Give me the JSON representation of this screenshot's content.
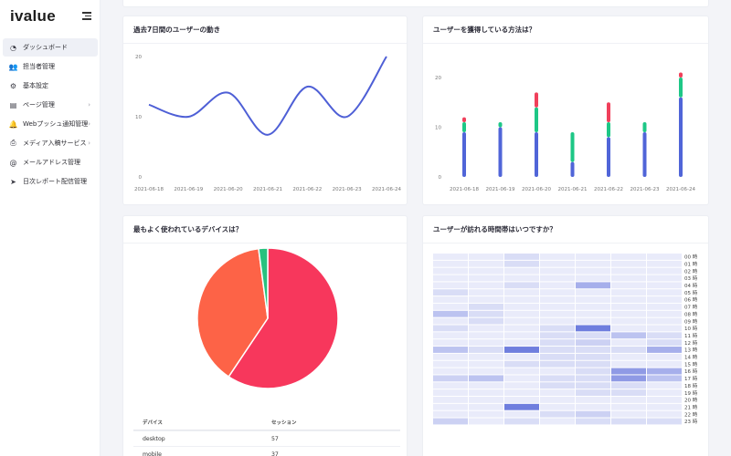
{
  "sidebar": {
    "logo": "ivalue",
    "items": [
      {
        "label": "ダッシュボード",
        "icon": "dashboard-icon",
        "glyph": "◔",
        "active": true,
        "chevron": false
      },
      {
        "label": "担当者管理",
        "icon": "users-icon",
        "glyph": "👥",
        "active": false,
        "chevron": false
      },
      {
        "label": "基本設定",
        "icon": "gear-icon",
        "glyph": "⚙",
        "active": false,
        "chevron": false
      },
      {
        "label": "ページ管理",
        "icon": "page-icon",
        "glyph": "▤",
        "active": false,
        "chevron": true
      },
      {
        "label": "Webプッシュ通知管理",
        "icon": "bell-icon",
        "glyph": "🔔",
        "active": false,
        "chevron": true
      },
      {
        "label": "メディア入稿サービス",
        "icon": "printer-icon",
        "glyph": "⎙",
        "active": false,
        "chevron": true
      },
      {
        "label": "メールアドレス管理",
        "icon": "at-icon",
        "glyph": "@",
        "active": false,
        "chevron": false
      },
      {
        "label": "日次レポート配信管理",
        "icon": "send-icon",
        "glyph": "➤",
        "active": false,
        "chevron": false
      }
    ]
  },
  "cards": {
    "users_title": "過去7日間のユーザーの動き",
    "acquisition_title": "ユーザーを獲得している方法は？",
    "devices_title": "最もよく使われているデバイスは？",
    "hours_title": "ユーザーが訪れる時間帯はいつですか？"
  },
  "colors": {
    "line": "#4e5fd6",
    "bar_blue": "#5065d8",
    "bar_green": "#1ec786",
    "bar_red": "#f0405b",
    "pie_red": "#f7375c",
    "pie_orange": "#fd6347",
    "pie_green": "#28c17f"
  },
  "chart_data": [
    {
      "type": "line",
      "title": "過去7日間のユーザーの動き",
      "categories": [
        "2021-06-18",
        "2021-06-19",
        "2021-06-20",
        "2021-06-21",
        "2021-06-22",
        "2021-06-23",
        "2021-06-24"
      ],
      "values": [
        12,
        10,
        14,
        7,
        15,
        10,
        20
      ],
      "yticks": [
        "0",
        "10",
        "20"
      ],
      "ylim": [
        0,
        20
      ],
      "grid": false
    },
    {
      "type": "bar",
      "stacked": true,
      "title": "ユーザーを獲得している方法は？",
      "categories": [
        "2021-06-18",
        "2021-06-19",
        "2021-06-20",
        "2021-06-21",
        "2021-06-22",
        "2021-06-23",
        "2021-06-24"
      ],
      "series": [
        {
          "color": "blue",
          "values": [
            9,
            10,
            9,
            3,
            8,
            9,
            16
          ]
        },
        {
          "color": "green",
          "values": [
            2,
            1,
            5,
            6,
            3,
            2,
            4
          ]
        },
        {
          "color": "red",
          "values": [
            1,
            0,
            3,
            0,
            4,
            0,
            1
          ]
        }
      ],
      "yticks": [
        "0",
        "10",
        "20"
      ],
      "ylim": [
        0,
        20
      ],
      "grid": false
    },
    {
      "type": "pie",
      "title": "最もよく使われているデバイスは？",
      "slices": [
        {
          "label": "desktop",
          "value": 57
        },
        {
          "label": "mobile",
          "value": 37
        },
        {
          "label": "tablet",
          "value": 2
        }
      ]
    },
    {
      "type": "heatmap",
      "title": "ユーザーが訪れる時間帯はいつですか？",
      "rows": [
        "00 時",
        "01 時",
        "02 時",
        "03 時",
        "04 時",
        "05 時",
        "06 時",
        "07 時",
        "08 時",
        "09 時",
        "10 時",
        "11 時",
        "12 時",
        "13 時",
        "14 時",
        "15 時",
        "16 時",
        "17 時",
        "18 時",
        "19 時",
        "20 時",
        "21 時",
        "22 時",
        "23 時"
      ],
      "values": [
        [
          0,
          0,
          1,
          0,
          0,
          0,
          0
        ],
        [
          0,
          0,
          1,
          0,
          0,
          0,
          0
        ],
        [
          0,
          0,
          0,
          0,
          0,
          0,
          0
        ],
        [
          0,
          0,
          0,
          0,
          0,
          0,
          0
        ],
        [
          0,
          0,
          1,
          0,
          4,
          0,
          0
        ],
        [
          1,
          0,
          0,
          0,
          0,
          0,
          0
        ],
        [
          0,
          0,
          0,
          0,
          0,
          0,
          0
        ],
        [
          0,
          1,
          0,
          0,
          0,
          0,
          0
        ],
        [
          3,
          1,
          0,
          0,
          0,
          0,
          0
        ],
        [
          0,
          1,
          0,
          0,
          0,
          0,
          0
        ],
        [
          1,
          0,
          0,
          1,
          6,
          0,
          0
        ],
        [
          0,
          0,
          0,
          1,
          1,
          3,
          1
        ],
        [
          0,
          0,
          0,
          1,
          2,
          0,
          1
        ],
        [
          3,
          1,
          6,
          1,
          1,
          1,
          4
        ],
        [
          0,
          0,
          0,
          1,
          1,
          0,
          0
        ],
        [
          0,
          0,
          1,
          1,
          1,
          0,
          0
        ],
        [
          0,
          0,
          0,
          0,
          1,
          5,
          4
        ],
        [
          2,
          3,
          0,
          1,
          1,
          5,
          3
        ],
        [
          0,
          0,
          0,
          1,
          1,
          1,
          0
        ],
        [
          0,
          0,
          0,
          0,
          1,
          1,
          0
        ],
        [
          0,
          0,
          0,
          0,
          0,
          0,
          0
        ],
        [
          0,
          0,
          6,
          0,
          0,
          0,
          0
        ],
        [
          0,
          0,
          0,
          1,
          2,
          0,
          0
        ],
        [
          2,
          0,
          1,
          0,
          1,
          1,
          1
        ]
      ]
    }
  ],
  "device_table": {
    "headers": [
      "デバイス",
      "セッション"
    ],
    "rows": [
      {
        "device": "desktop",
        "sessions": "57"
      },
      {
        "device": "mobile",
        "sessions": "37"
      }
    ]
  }
}
